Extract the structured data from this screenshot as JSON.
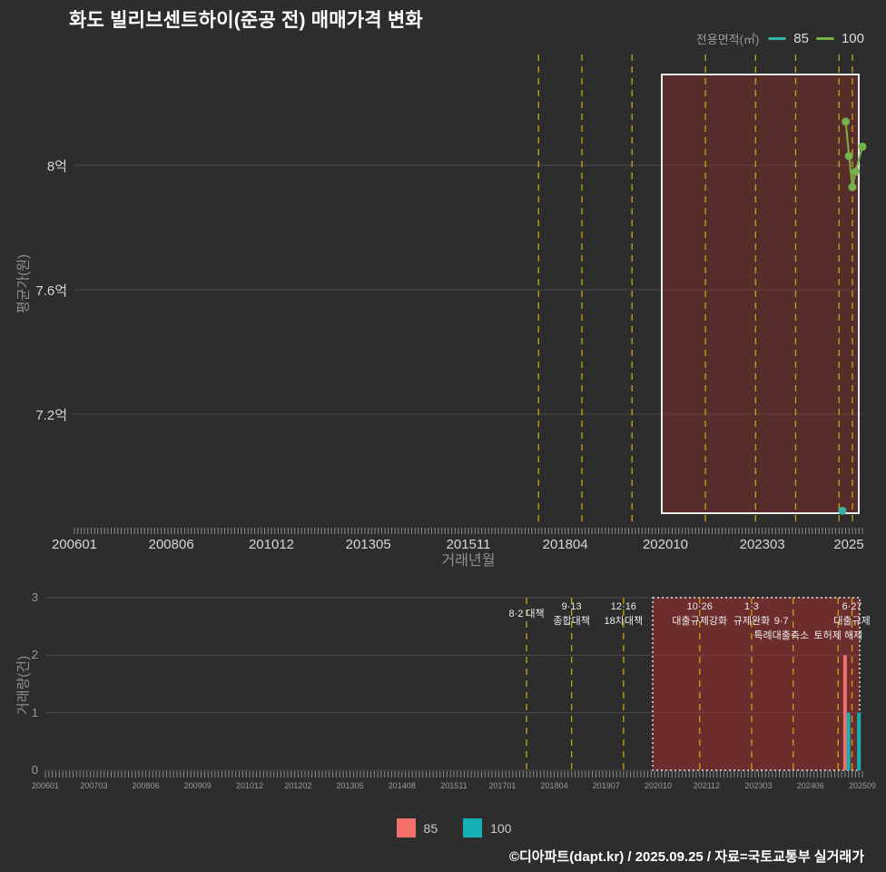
{
  "title": "화도 빌리브센트하이(준공 전) 매매가격 변화",
  "legend_top": {
    "label": "전용면적(㎡)",
    "items": [
      {
        "label": "85",
        "color": "#35b1a5"
      },
      {
        "label": "100",
        "color": "#74b34c"
      }
    ]
  },
  "legend_bottom": {
    "items": [
      {
        "label": "85",
        "color": "#f2706a"
      },
      {
        "label": "100",
        "color": "#13b0b4"
      }
    ]
  },
  "footer": "©디아파트(dapt.kr) / 2025.09.25 / 자료=국토교통부 실거래가",
  "colors": {
    "background": "#2d2d2d",
    "gridline": "#4b4b4b",
    "policy_line": "#b6a213",
    "highlight_fill_price": "rgba(150,42,42,0.42)",
    "highlight_fill_volume": "rgba(175,45,45,0.5)",
    "highlight_border_price": "#ededed",
    "highlight_border_volume": "#e3e3e3",
    "tick_comb": "#8c8c8c"
  },
  "chart_data": [
    {
      "type": "line",
      "name": "price-chart",
      "xlabel": "거래년월",
      "ylabel": "평균가(원)",
      "x_range": [
        "200601",
        "202509"
      ],
      "y_range_eok": [
        6.8,
        8.3
      ],
      "x_ticks": [
        {
          "label": "200601",
          "month": "200601"
        },
        {
          "label": "200806",
          "month": "200806"
        },
        {
          "label": "201012",
          "month": "201012"
        },
        {
          "label": "201305",
          "month": "201305"
        },
        {
          "label": "201511",
          "month": "201511"
        },
        {
          "label": "201804",
          "month": "201804"
        },
        {
          "label": "202010",
          "month": "202010"
        },
        {
          "label": "202303",
          "month": "202303"
        },
        {
          "label": "2025",
          "month": "202509"
        }
      ],
      "y_ticks": [
        {
          "label": "8억",
          "value": 8.0
        },
        {
          "label": "7.6억",
          "value": 7.6
        },
        {
          "label": "7.2억",
          "value": 7.2
        }
      ],
      "series": [
        {
          "name": "85",
          "color": "#35b1a5",
          "points": [
            {
              "month": "202503",
              "value": 6.89
            }
          ]
        },
        {
          "name": "100",
          "color": "#74b34c",
          "points": [
            {
              "month": "202504",
              "value": 8.14
            },
            {
              "month": "202505",
              "value": 8.03
            },
            {
              "month": "202506",
              "value": 7.93
            },
            {
              "month": "202507",
              "value": 7.98
            },
            {
              "month": "202509",
              "value": 8.06
            }
          ]
        }
      ],
      "policy_months": [
        "201708",
        "201809",
        "201912",
        "202110",
        "202301",
        "202401",
        "202502",
        "202506"
      ],
      "highlight_from": "202010"
    },
    {
      "type": "bar",
      "name": "volume-chart",
      "ylabel": "거래량(건)",
      "y_ticks": [
        0,
        1,
        2,
        3
      ],
      "x_ticks": [
        {
          "label": "200601",
          "month": "200601"
        },
        {
          "label": "200703",
          "month": "200703"
        },
        {
          "label": "200806",
          "month": "200806"
        },
        {
          "label": "200909",
          "month": "200909"
        },
        {
          "label": "201012",
          "month": "201012"
        },
        {
          "label": "201202",
          "month": "201202"
        },
        {
          "label": "201305",
          "month": "201305"
        },
        {
          "label": "201408",
          "month": "201408"
        },
        {
          "label": "201511",
          "month": "201511"
        },
        {
          "label": "201701",
          "month": "201701"
        },
        {
          "label": "201804",
          "month": "201804"
        },
        {
          "label": "201907",
          "month": "201907"
        },
        {
          "label": "202010",
          "month": "202010"
        },
        {
          "label": "202112",
          "month": "202112"
        },
        {
          "label": "202303",
          "month": "202303"
        },
        {
          "label": "202406",
          "month": "202406"
        },
        {
          "label": "202509",
          "month": "202509"
        }
      ],
      "series": [
        {
          "name": "85",
          "color": "#f2706a",
          "bars": [
            {
              "month": "202504",
              "value": 2
            }
          ]
        },
        {
          "name": "100",
          "color": "#13b0b4",
          "bars": [
            {
              "month": "202505",
              "value": 1
            },
            {
              "month": "202508",
              "value": 1
            }
          ]
        }
      ],
      "highlight_from": "202010",
      "annotations": [
        {
          "month": "201708",
          "row": 0.5,
          "lines": [
            "8·2 대책"
          ]
        },
        {
          "month": "201809",
          "row": 0,
          "lines": [
            "9·13",
            "종합대책"
          ]
        },
        {
          "month": "201912",
          "row": 0,
          "lines": [
            "12·16",
            "18차대책"
          ]
        },
        {
          "month": "202110",
          "row": 0,
          "lines": [
            "10·26",
            "대출규제강화"
          ]
        },
        {
          "month": "202301",
          "row": 0,
          "lines": [
            "1·3",
            "규제완화"
          ]
        },
        {
          "month": "202401",
          "row": 1,
          "dx": -13,
          "lines": [
            "9·7",
            "특례대출축소"
          ]
        },
        {
          "month": "202502",
          "row": 2,
          "lines": [
            "토허제 해제"
          ]
        },
        {
          "month": "202506",
          "row": 0,
          "lines": [
            "6·27",
            "대출규제"
          ]
        }
      ]
    }
  ]
}
